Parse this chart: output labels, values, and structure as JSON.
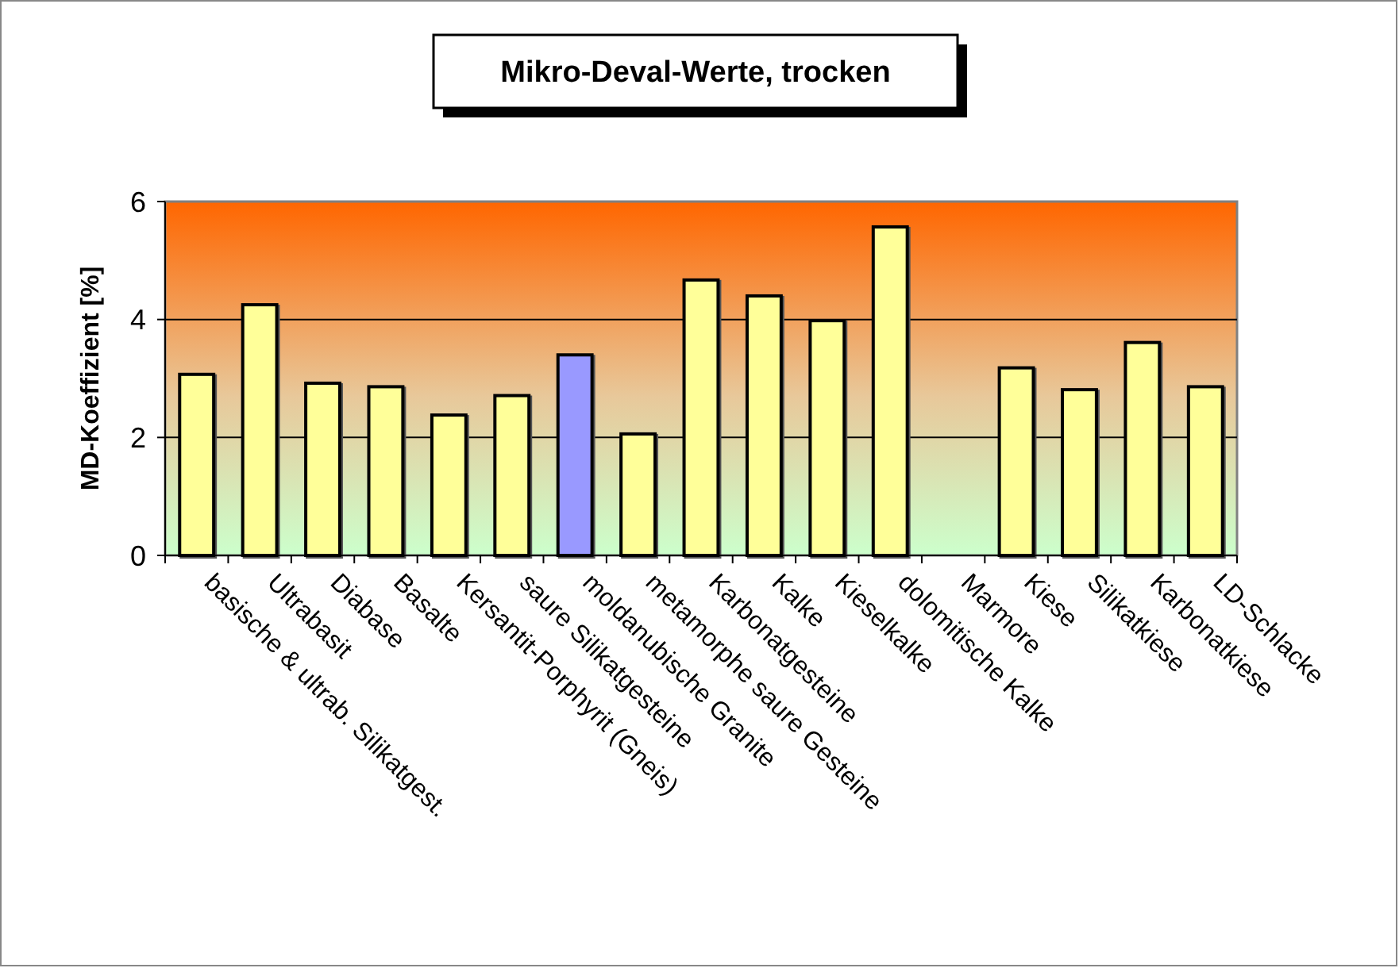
{
  "chart_data": {
    "type": "bar",
    "title": "Mikro-Deval-Werte, trocken",
    "ylabel": "MD-Koeffizient [%]",
    "categories": [
      "basische & ultrab. Silikatgest.",
      "Ultrabasit",
      "Diabase",
      "Basalte",
      "Kersantit-Porphyrit (Gneis)",
      "saure Silikatgesteine",
      "moldanubische Granite",
      "metamorphe saure Gesteine",
      "Karbonatgesteine",
      "Kalke",
      "Kieselkalke",
      "dolomitische Kalke",
      "Marmore",
      "Kiese",
      "Silikatkiese",
      "Karbonatkiese",
      "LD-Schlacke"
    ],
    "values": [
      3.07,
      4.25,
      2.92,
      2.86,
      2.38,
      2.71,
      3.4,
      2.06,
      4.67,
      4.4,
      3.98,
      5.57,
      null,
      3.18,
      2.81,
      3.61,
      2.86
    ],
    "colors": [
      "#ffff99",
      "#ffff99",
      "#ffff99",
      "#ffff99",
      "#ffff99",
      "#ffff99",
      "#9999ff",
      "#ffff99",
      "#ffff99",
      "#ffff99",
      "#ffff99",
      "#ffff99",
      "#ffff99",
      "#ffff99",
      "#ffff99",
      "#ffff99",
      "#ffff99"
    ],
    "ylim": [
      0,
      6
    ],
    "yticks": [
      0,
      2,
      4,
      6
    ],
    "grid": "y"
  }
}
